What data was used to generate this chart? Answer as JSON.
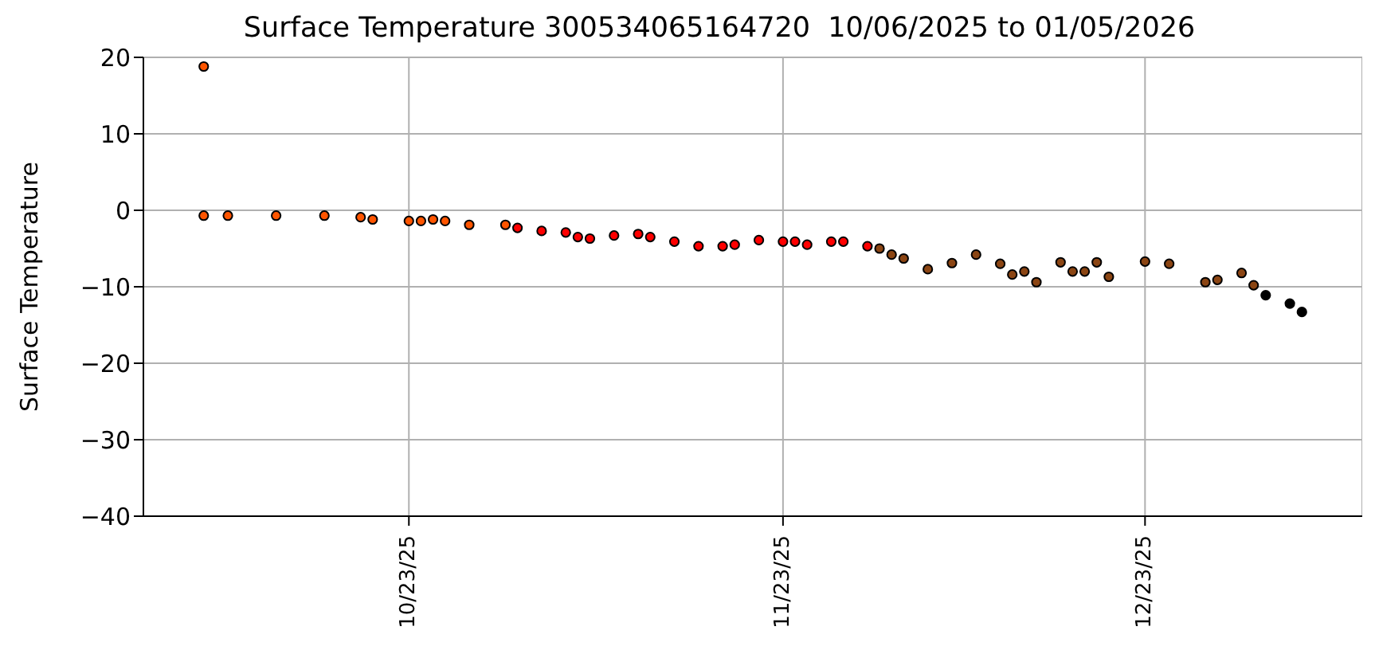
{
  "chart_data": {
    "type": "scatter",
    "title": "Surface Temperature 300534065164720  10/06/2025 to 01/05/2026",
    "ylabel": "Surface Temperature",
    "xlim": [
      "2025-10-01",
      "2026-01-10"
    ],
    "xticks": [
      {
        "value": "2025-10-23",
        "label": "10/23/25"
      },
      {
        "value": "2025-11-23",
        "label": "11/23/25"
      },
      {
        "value": "2025-12-23",
        "label": "12/23/25"
      }
    ],
    "ylim": [
      -40,
      20
    ],
    "yticks": [
      -40,
      -30,
      -20,
      -10,
      0,
      10,
      20
    ],
    "grid": true,
    "marker": "circle",
    "series": [
      {
        "color": "#ff5500",
        "x": [
          "2025-10-06",
          "2025-10-06",
          "2025-10-08",
          "2025-10-12",
          "2025-10-16",
          "2025-10-19",
          "2025-10-20",
          "2025-10-23",
          "2025-10-24",
          "2025-10-25",
          "2025-10-26",
          "2025-10-28",
          "2025-10-31"
        ],
        "values": [
          18.8,
          -0.7,
          -0.7,
          -0.7,
          -0.7,
          -0.9,
          -1.2,
          -1.4,
          -1.4,
          -1.2,
          -1.4,
          -1.9,
          -1.9
        ]
      },
      {
        "color": "#ff0000",
        "x": [
          "2025-11-01",
          "2025-11-03",
          "2025-11-05",
          "2025-11-06",
          "2025-11-07",
          "2025-11-09",
          "2025-11-11",
          "2025-11-12",
          "2025-11-14",
          "2025-11-16",
          "2025-11-18",
          "2025-11-19",
          "2025-11-21",
          "2025-11-23",
          "2025-11-24",
          "2025-11-25",
          "2025-11-27",
          "2025-11-28",
          "2025-11-30"
        ],
        "values": [
          -2.3,
          -2.7,
          -2.9,
          -3.5,
          -3.7,
          -3.3,
          -3.1,
          -3.5,
          -4.1,
          -4.7,
          -4.7,
          -4.5,
          -3.9,
          -4.1,
          -4.1,
          -4.5,
          -4.1,
          -4.1,
          -4.7
        ]
      },
      {
        "color": "#8b4513",
        "x": [
          "2025-12-01",
          "2025-12-02",
          "2025-12-03",
          "2025-12-05",
          "2025-12-07",
          "2025-12-09",
          "2025-12-11",
          "2025-12-12",
          "2025-12-13",
          "2025-12-14",
          "2025-12-16",
          "2025-12-17",
          "2025-12-18",
          "2025-12-19",
          "2025-12-20",
          "2025-12-23",
          "2025-12-25",
          "2025-12-28",
          "2025-12-29",
          "2025-12-31",
          "2026-01-01"
        ],
        "values": [
          -5.0,
          -5.8,
          -6.3,
          -7.7,
          -6.9,
          -5.8,
          -7.0,
          -8.4,
          -8.0,
          -9.4,
          -6.8,
          -8.0,
          -8.0,
          -6.8,
          -8.7,
          -6.7,
          -7.0,
          -9.4,
          -9.1,
          -8.2,
          -9.8
        ]
      },
      {
        "color": "#000000",
        "x": [
          "2026-01-02",
          "2026-01-04",
          "2026-01-05"
        ],
        "values": [
          -11.1,
          -12.2,
          -13.3
        ]
      }
    ]
  }
}
